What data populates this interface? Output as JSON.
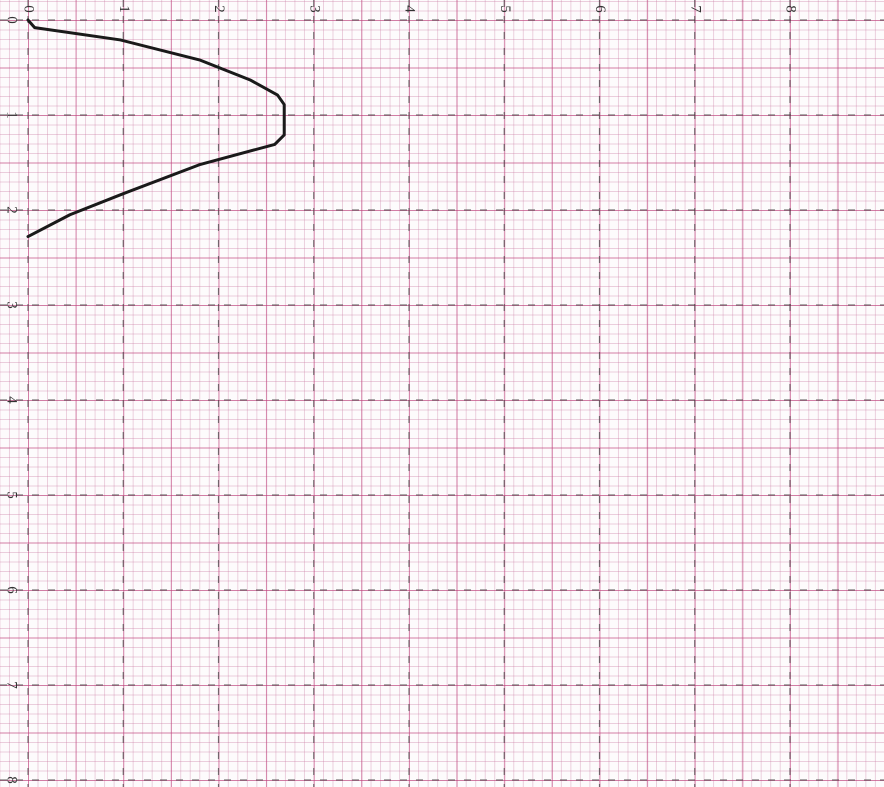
{
  "chart_data": {
    "type": "line",
    "x": [
      0,
      0.07,
      0.97,
      1.8,
      2.33,
      2.62,
      2.69,
      2.69,
      2.59,
      1.81,
      0.97,
      0.44,
      0
    ],
    "series": [
      {
        "color": "#1a1a1a",
        "values": [
          0,
          0.08,
          0.21,
          0.42,
          0.63,
          0.79,
          0.89,
          1.21,
          1.31,
          1.52,
          1.84,
          2.05,
          2.28
        ]
      }
    ],
    "xlim": [
      0,
      8
    ],
    "ylim": [
      0,
      8
    ],
    "xticks": [
      0,
      1,
      2,
      3,
      4,
      5,
      6,
      7,
      8
    ],
    "yticks": [
      0,
      1,
      2,
      3,
      4,
      5,
      6,
      7,
      8
    ],
    "y_inverted": true,
    "grid": true
  }
}
